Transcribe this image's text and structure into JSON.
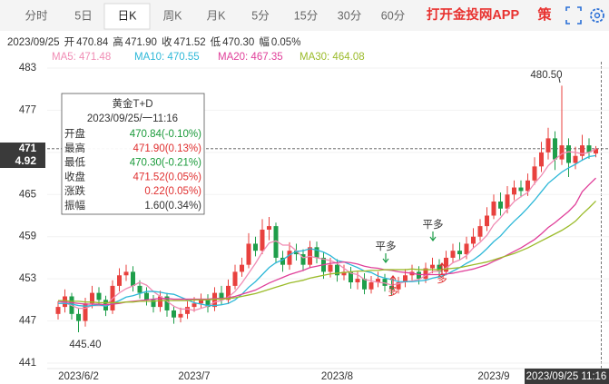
{
  "tabs": {
    "items": [
      "分时",
      "5日",
      "日K",
      "周K",
      "月K",
      "5分",
      "15分",
      "30分",
      "60分"
    ],
    "selected": 2,
    "app_link": "打开金投网APP",
    "strategy": "策"
  },
  "info_bar": {
    "date": "2023/09/25",
    "items": [
      {
        "label": "开",
        "value": "470.84"
      },
      {
        "label": "高",
        "value": "471.90"
      },
      {
        "label": "收",
        "value": "471.52"
      },
      {
        "label": "低",
        "value": "470.30"
      },
      {
        "label": "幅",
        "value": "0.05%"
      }
    ]
  },
  "tooltip": {
    "title": "黄金T+D",
    "date": "2023/09/25/一11:16",
    "rows": [
      {
        "label": "开盘",
        "value": "470.84(-0.10%)",
        "color": "#1a9a3a"
      },
      {
        "label": "最高",
        "value": "471.90(0.13%)",
        "color": "#e03030"
      },
      {
        "label": "最低",
        "value": "470.30(-0.21%)",
        "color": "#1a9a3a"
      },
      {
        "label": "收盘",
        "value": "471.52(0.05%)",
        "color": "#e03030"
      },
      {
        "label": "涨跌",
        "value": "0.22(0.05%)",
        "color": "#e03030"
      },
      {
        "label": "振幅",
        "value": "1.60(0.34%)",
        "color": "#333333"
      }
    ]
  },
  "chart_data": {
    "type": "candlestick",
    "up_color": "#e8413e",
    "down_color": "#1e9e4a",
    "ylim": [
      441,
      483
    ],
    "yticks": [
      441,
      447,
      453,
      459,
      465,
      471,
      477,
      483
    ],
    "price_box": "4.92",
    "cursor_label": "2023/09/25 11:16",
    "annotations": [
      "480.50",
      "445.40"
    ],
    "signals": [
      "平多",
      "平多",
      "多",
      "多"
    ],
    "categories": [
      null,
      null,
      null,
      "2023/6/2",
      null,
      null,
      null,
      null,
      null,
      null,
      null,
      null,
      null,
      null,
      null,
      null,
      null,
      null,
      null,
      null,
      "2023/7",
      null,
      null,
      null,
      null,
      null,
      null,
      null,
      null,
      null,
      null,
      null,
      null,
      null,
      null,
      null,
      null,
      null,
      null,
      null,
      null,
      "2023/8",
      null,
      null,
      null,
      null,
      null,
      null,
      null,
      null,
      null,
      null,
      null,
      null,
      null,
      null,
      null,
      null,
      null,
      null,
      null,
      null,
      null,
      null,
      "2023/9",
      null,
      null,
      null,
      null,
      null,
      null,
      null,
      null,
      null,
      null,
      null,
      null,
      null,
      null,
      null
    ],
    "open": [
      448,
      449,
      450.5,
      448,
      447,
      449.5,
      451,
      450,
      448.5,
      452,
      453.5,
      454,
      452,
      451,
      450,
      449,
      450.5,
      448.5,
      447.5,
      448,
      449,
      449.5,
      450,
      449,
      451,
      450,
      452,
      454,
      455,
      458,
      457,
      460,
      460.5,
      456,
      455,
      457,
      456.5,
      455,
      457.5,
      456,
      454,
      455,
      453.5,
      454,
      452.5,
      453,
      451.5,
      452.5,
      453,
      452,
      451.5,
      452.5,
      453.5,
      454,
      453,
      454.5,
      455,
      454,
      456,
      457,
      456.5,
      458,
      459,
      460.5,
      462,
      464,
      463,
      465,
      466,
      465.5,
      467,
      469,
      471,
      473,
      470,
      472,
      469.5,
      470.5,
      472,
      470.84
    ],
    "high": [
      449.8,
      451.5,
      451,
      448.8,
      450.3,
      452,
      451.8,
      450.6,
      452.8,
      454.5,
      455,
      454.8,
      452.8,
      451.8,
      450.7,
      451.3,
      451,
      449.2,
      448.9,
      449.8,
      450.4,
      450.9,
      450.8,
      451.8,
      452,
      452.9,
      455,
      456,
      459.5,
      459,
      461.5,
      461.8,
      461,
      457,
      458.2,
      458,
      457.2,
      458.4,
      458.3,
      456.8,
      456,
      455.8,
      455,
      454.7,
      454,
      453.8,
      453.4,
      454,
      453.7,
      452.8,
      453.3,
      454.4,
      455,
      454.8,
      455.3,
      456,
      455.8,
      457,
      458,
      458.2,
      459,
      460.2,
      461.5,
      463.2,
      465,
      465.3,
      466.2,
      467,
      467,
      468,
      470.3,
      472.5,
      474.5,
      474,
      480.5,
      473,
      471.8,
      473.5,
      473,
      471.9
    ],
    "low": [
      447.2,
      448.2,
      447.2,
      445.4,
      446.2,
      448.8,
      449.2,
      447.7,
      448,
      451.2,
      452.7,
      451.2,
      450.2,
      449.2,
      448.2,
      448.3,
      447.6,
      446.6,
      446.8,
      447.3,
      448.3,
      448.8,
      448.2,
      448.4,
      449.3,
      449.4,
      451.5,
      453.3,
      454.5,
      456.2,
      456.5,
      458.5,
      455.2,
      454,
      454.3,
      455.6,
      454.1,
      454.5,
      455.2,
      453,
      453.2,
      452.6,
      452.8,
      451.6,
      451.5,
      450.8,
      450.9,
      451.8,
      451.2,
      450.6,
      450.9,
      451.8,
      452.8,
      452.2,
      452.4,
      453.8,
      453.2,
      453.5,
      455.3,
      455.6,
      455.8,
      457.3,
      458.4,
      459.8,
      461.5,
      462,
      462.3,
      464.2,
      464.6,
      464.8,
      466.4,
      468.2,
      470,
      468.5,
      469.2,
      467.5,
      468.6,
      469.8,
      470.1,
      470.3
    ],
    "close": [
      449,
      450.5,
      448,
      447,
      449.5,
      451,
      450,
      448.5,
      452,
      453.5,
      454,
      452,
      451,
      450,
      449,
      450.5,
      448.5,
      447.5,
      448,
      449,
      449.5,
      450,
      449,
      451,
      450,
      452,
      454,
      455,
      458,
      457,
      460,
      460.5,
      456,
      455,
      457,
      456.5,
      455,
      457.5,
      456,
      454,
      455,
      453.5,
      454,
      452.5,
      453,
      451.5,
      452.5,
      453,
      452,
      451.5,
      452.5,
      453.5,
      454,
      453,
      454.5,
      455,
      454,
      456,
      457,
      456.5,
      458,
      459,
      460.5,
      462,
      464,
      463,
      465,
      466,
      465.5,
      467,
      469,
      471,
      473,
      470,
      472,
      469.5,
      470.5,
      472,
      471,
      471.52
    ],
    "series": [
      {
        "name": "MA5: 471.48",
        "color": "#f08cb4",
        "values": [
          449.5,
          449.6,
          449.2,
          448.8,
          448.8,
          449.2,
          449.2,
          449.2,
          450.2,
          451,
          451.6,
          452,
          452.5,
          452.1,
          451.2,
          450.5,
          449.8,
          449.1,
          448.7,
          448.7,
          448.5,
          448.8,
          449.1,
          449.7,
          449.9,
          450.4,
          451.2,
          452.4,
          453.8,
          455.2,
          456.8,
          458.1,
          458.4,
          457.8,
          457.8,
          457,
          456,
          456.2,
          456,
          455.8,
          455.6,
          455.2,
          454.5,
          453.8,
          453.6,
          452.9,
          452.7,
          452.5,
          452.4,
          452.1,
          452.3,
          452.6,
          452.7,
          452.9,
          453.5,
          454,
          454.1,
          454.5,
          455.3,
          455.7,
          456.3,
          457.4,
          458.2,
          459.2,
          460.7,
          461.7,
          462.9,
          464,
          464.7,
          465.3,
          466.6,
          467.7,
          469.1,
          470,
          470.8,
          471.1,
          471,
          470.8,
          471,
          471.48
        ]
      },
      {
        "name": "MA10: 470.55",
        "color": "#2eb8d8",
        "values": [
          449.5,
          449.5,
          449.4,
          449.2,
          449.1,
          449.2,
          449.3,
          449.1,
          449.5,
          449.9,
          450.4,
          450.6,
          450.9,
          451.2,
          451.2,
          451.1,
          450.9,
          450.8,
          450.4,
          450,
          449.6,
          449.4,
          449.2,
          449.2,
          449.3,
          449.5,
          450,
          450.8,
          451.8,
          452.6,
          453.6,
          454.6,
          455.3,
          455.7,
          456.4,
          456.9,
          457,
          457.3,
          457.1,
          456.8,
          456.3,
          455.6,
          455.4,
          455,
          454.6,
          454.1,
          453.9,
          453.4,
          453.1,
          452.9,
          452.6,
          452.6,
          452.6,
          452.7,
          452.8,
          453.1,
          453.3,
          453.6,
          454.1,
          454.6,
          455.2,
          455.7,
          456.4,
          457.3,
          458.3,
          459.1,
          460.2,
          461.2,
          462.1,
          463.1,
          464.2,
          465.4,
          466.6,
          467.4,
          468.2,
          468.8,
          469.3,
          469.9,
          470.4,
          470.55
        ]
      },
      {
        "name": "MA20: 467.35",
        "color": "#e0409a",
        "values": [
          449.8,
          449.7,
          449.6,
          449.5,
          449.4,
          449.4,
          449.4,
          449.3,
          449.4,
          449.5,
          449.7,
          449.8,
          449.9,
          450,
          450.1,
          450.2,
          450.2,
          450.1,
          450.1,
          450.1,
          450.1,
          450.1,
          450.1,
          450.2,
          450.2,
          450.3,
          450.5,
          450.8,
          451.1,
          451.4,
          451.9,
          452.4,
          452.8,
          453.2,
          453.6,
          453.9,
          454.2,
          454.6,
          454.8,
          455,
          455.2,
          455.3,
          455.4,
          455.3,
          455.1,
          454.8,
          454.6,
          454.5,
          454.3,
          454.2,
          454,
          453.9,
          453.8,
          453.6,
          453.6,
          453.6,
          453.6,
          453.7,
          453.8,
          454,
          454.2,
          454.4,
          454.7,
          455,
          455.5,
          455.9,
          456.4,
          456.9,
          457.4,
          458,
          458.6,
          459.4,
          460.3,
          461,
          461.8,
          462.6,
          463.6,
          465.4,
          466.4,
          467.35
        ]
      },
      {
        "name": "MA30: 464.08",
        "color": "#9bbb2a",
        "values": [
          449.9,
          449.9,
          449.8,
          449.8,
          449.7,
          449.7,
          449.6,
          449.6,
          449.6,
          449.6,
          449.7,
          449.7,
          449.8,
          449.8,
          449.8,
          449.9,
          449.9,
          449.9,
          449.9,
          449.9,
          450,
          450,
          450,
          450.1,
          450.1,
          450.2,
          450.3,
          450.5,
          450.7,
          450.9,
          451.2,
          451.5,
          451.8,
          452.1,
          452.4,
          452.6,
          452.8,
          453.1,
          453.3,
          453.5,
          453.7,
          453.8,
          453.9,
          454,
          454.1,
          454.1,
          454.2,
          454.2,
          454.3,
          454.3,
          454.3,
          454.3,
          454.4,
          454.3,
          454.3,
          454.3,
          454.3,
          454.4,
          454.5,
          454.6,
          454.8,
          455,
          455.2,
          455.4,
          455.7,
          456,
          456.3,
          456.6,
          457,
          457.4,
          457.9,
          458.4,
          458.9,
          459.4,
          459.9,
          460.5,
          461.2,
          462.2,
          463.1,
          464.08
        ]
      }
    ]
  }
}
